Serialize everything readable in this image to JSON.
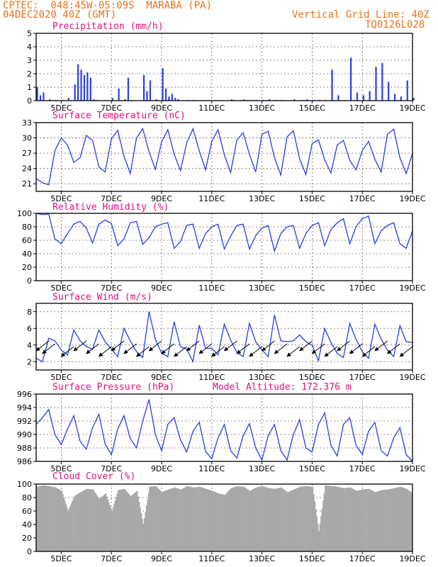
{
  "header": {
    "line1": "CPTEC:  048:45W-05:09S  MARABA (PA)",
    "line2": "04DEC2020 40Z (GMT)",
    "right1": "Vertical Grid Line: 40Z",
    "right2": "TQ0126L028"
  },
  "colors": {
    "header": "#e8731c",
    "titles": "#e0117f",
    "series": "#2b3ee8",
    "cloud": "#a8a8a8",
    "arrows": "#000000"
  },
  "chart_data": [
    {
      "type": "bar",
      "title": "Precipitation (mm/h)",
      "ylim": [
        0,
        5
      ],
      "yticks": [
        0,
        1,
        2,
        3,
        4,
        5
      ],
      "xticks": [
        "5DEC",
        "7DEC",
        "9DEC",
        "11DEC",
        "13DEC",
        "15DEC",
        "17DEC",
        "19DEC"
      ],
      "x_hours": [
        0,
        3,
        6,
        12,
        18,
        24,
        30,
        36,
        39,
        42,
        45,
        48,
        51,
        54,
        57,
        72,
        78,
        84,
        87,
        90,
        102,
        105,
        108,
        114,
        120,
        123,
        126,
        129,
        132,
        135,
        144,
        150,
        186,
        189,
        195,
        198,
        201,
        204,
        207,
        210,
        216,
        219,
        222,
        228,
        234,
        246,
        252,
        255,
        258,
        264,
        270,
        276,
        282,
        288,
        294,
        300,
        306,
        312,
        318,
        324,
        330,
        336,
        342,
        348,
        354,
        360
      ],
      "values": [
        1.0,
        0.4,
        0.6,
        0.1,
        0.05,
        0.05,
        0.2,
        1.2,
        2.7,
        2.3,
        1.9,
        2.1,
        1.7,
        0.1,
        0.05,
        0.2,
        0.9,
        0.1,
        1.7,
        0.05,
        1.9,
        0.7,
        1.5,
        0.1,
        2.4,
        0.9,
        0.3,
        0.5,
        0.2,
        0.1,
        0.05,
        0.05,
        0.1,
        0.05,
        0.05,
        0.1,
        0.05,
        0.05,
        0.05,
        0.05,
        0.05,
        0.05,
        0.1,
        0.05,
        0.05,
        0.1,
        0.05,
        0.05,
        0.1,
        0.05,
        0.05,
        0.05,
        2.3,
        0.4,
        0.05,
        3.2,
        0.6,
        0.4,
        0.7,
        2.5,
        2.8,
        1.4,
        0.5,
        0.3,
        1.5,
        0.2
      ]
    },
    {
      "type": "line",
      "title": "Surface Temperature (nC)",
      "ylim": [
        19.5,
        33
      ],
      "yticks": [
        21,
        24,
        27,
        30,
        33
      ],
      "xticks": [
        "5DEC",
        "7DEC",
        "9DEC",
        "11DEC",
        "13DEC",
        "15DEC",
        "17DEC",
        "19DEC"
      ],
      "x_hours": [
        0,
        6,
        12,
        18,
        24,
        30,
        36,
        42,
        48,
        54,
        60,
        66,
        72,
        78,
        84,
        90,
        96,
        102,
        108,
        114,
        120,
        126,
        132,
        138,
        144,
        150,
        156,
        162,
        168,
        174,
        180,
        186,
        192,
        198,
        204,
        210,
        216,
        222,
        228,
        234,
        240,
        246,
        252,
        258,
        264,
        270,
        276,
        282,
        288,
        294,
        300,
        306,
        312,
        318,
        324,
        330,
        336,
        342,
        348,
        354,
        360
      ],
      "values": [
        22.0,
        21.2,
        20.8,
        27.5,
        30.0,
        28.6,
        25.2,
        26.1,
        30.5,
        29.5,
        24.3,
        23.3,
        29.8,
        31.5,
        26.4,
        23.0,
        30.0,
        31.8,
        27.3,
        23.8,
        29.2,
        31.6,
        26.8,
        23.6,
        29.0,
        31.8,
        27.5,
        23.7,
        29.3,
        31.6,
        26.7,
        23.2,
        29.6,
        31.0,
        26.8,
        23.3,
        30.7,
        31.3,
        26.1,
        22.7,
        30.2,
        31.4,
        25.9,
        22.8,
        28.9,
        29.6,
        25.7,
        23.1,
        28.6,
        29.5,
        25.6,
        23.7,
        27.5,
        29.3,
        25.8,
        23.3,
        30.7,
        31.7,
        26.1,
        23.0,
        27.0
      ],
      "xlabel": "",
      "ylabel": ""
    },
    {
      "type": "line",
      "title": "Relative Humidity (%)",
      "ylim": [
        0,
        100
      ],
      "yticks": [
        0,
        20,
        40,
        60,
        80,
        100
      ],
      "xticks": [
        "5DEC",
        "7DEC",
        "9DEC",
        "11DEC",
        "13DEC",
        "15DEC",
        "17DEC",
        "19DEC"
      ],
      "x_hours": [
        0,
        6,
        12,
        18,
        24,
        30,
        36,
        42,
        48,
        54,
        60,
        66,
        72,
        78,
        84,
        90,
        96,
        102,
        108,
        114,
        120,
        126,
        132,
        138,
        144,
        150,
        156,
        162,
        168,
        174,
        180,
        186,
        192,
        198,
        204,
        210,
        216,
        222,
        228,
        234,
        240,
        246,
        252,
        258,
        264,
        270,
        276,
        282,
        288,
        294,
        300,
        306,
        312,
        318,
        324,
        330,
        336,
        342,
        348,
        354,
        360
      ],
      "values": [
        100,
        98,
        99,
        62,
        55,
        70,
        84,
        88,
        78,
        56,
        84,
        90,
        85,
        52,
        62,
        86,
        88,
        54,
        64,
        80,
        84,
        86,
        48,
        58,
        82,
        84,
        48,
        70,
        80,
        84,
        47,
        66,
        82,
        84,
        47,
        67,
        78,
        82,
        44,
        70,
        80,
        82,
        48,
        70,
        82,
        86,
        52,
        76,
        86,
        92,
        55,
        80,
        92,
        96,
        55,
        74,
        82,
        86,
        55,
        48,
        74
      ]
    },
    {
      "type": "line",
      "title": "Surface Wind (m/s)",
      "ylim": [
        1,
        9
      ],
      "yticks": [
        2,
        4,
        6,
        8
      ],
      "xticks": [
        "5DEC",
        "7DEC",
        "9DEC",
        "11DEC",
        "13DEC",
        "15DEC",
        "17DEC",
        "19DEC"
      ],
      "x_hours": [
        0,
        6,
        12,
        18,
        24,
        30,
        36,
        42,
        48,
        54,
        60,
        66,
        72,
        78,
        84,
        90,
        96,
        102,
        108,
        114,
        120,
        126,
        132,
        138,
        144,
        150,
        156,
        162,
        168,
        174,
        180,
        186,
        192,
        198,
        204,
        210,
        216,
        222,
        228,
        234,
        240,
        246,
        252,
        258,
        264,
        270,
        276,
        282,
        288,
        294,
        300,
        306,
        312,
        318,
        324,
        330,
        336,
        342,
        348,
        354,
        360
      ],
      "values": [
        2.4,
        2.0,
        4.8,
        4.5,
        3.4,
        2.8,
        5.8,
        4.5,
        3.8,
        3.5,
        5.8,
        4.4,
        3.5,
        2.6,
        6.0,
        4.5,
        3.2,
        2.5,
        8.0,
        4.7,
        3.0,
        2.6,
        6.8,
        3.8,
        3.5,
        2.0,
        6.4,
        3.6,
        3.6,
        2.8,
        6.5,
        4.6,
        3.1,
        2.6,
        6.6,
        4.4,
        3.4,
        2.6,
        7.6,
        4.5,
        4.4,
        4.5,
        5.2,
        4.4,
        4.0,
        2.1,
        6.0,
        4.3,
        3.0,
        2.5,
        6.6,
        4.7,
        3.2,
        2.4,
        6.5,
        4.7,
        3.4,
        2.6,
        6.3,
        4.4,
        4.3
      ],
      "arrows_at_hours": [
        6,
        12,
        30,
        42,
        54,
        66,
        78,
        90,
        102,
        114,
        126,
        138,
        150,
        162,
        174,
        186,
        198,
        210,
        222,
        234,
        246,
        258,
        270,
        282,
        294,
        306,
        318,
        330,
        342,
        354
      ]
    },
    {
      "type": "line",
      "title": "Surface Pressure (hPa)",
      "annotation": "Model Altitude: 172.376 m",
      "ylim": [
        986,
        996
      ],
      "yticks": [
        986,
        988,
        990,
        992,
        994,
        996
      ],
      "xticks": [
        "5DEC",
        "7DEC",
        "9DEC",
        "11DEC",
        "13DEC",
        "15DEC",
        "17DEC",
        "19DEC"
      ],
      "x_hours": [
        0,
        6,
        12,
        18,
        24,
        30,
        36,
        42,
        48,
        54,
        60,
        66,
        72,
        78,
        84,
        90,
        96,
        102,
        108,
        114,
        120,
        126,
        132,
        138,
        144,
        150,
        156,
        162,
        168,
        174,
        180,
        186,
        192,
        198,
        204,
        210,
        216,
        222,
        228,
        234,
        240,
        246,
        252,
        258,
        264,
        270,
        276,
        282,
        288,
        294,
        300,
        306,
        312,
        318,
        324,
        330,
        336,
        342,
        348,
        354,
        360
      ],
      "values": [
        991.5,
        992.5,
        993.7,
        990.0,
        988.5,
        990.8,
        992.8,
        989.0,
        987.8,
        991.0,
        993.0,
        988.6,
        987.0,
        990.8,
        992.8,
        989.4,
        988.0,
        992.0,
        995.2,
        990.0,
        987.6,
        991.5,
        992.5,
        989.2,
        987.4,
        990.5,
        991.8,
        987.5,
        986.4,
        989.5,
        991.5,
        987.6,
        986.5,
        989.8,
        991.6,
        988.0,
        986.2,
        989.8,
        991.5,
        987.6,
        986.2,
        990.0,
        992.2,
        988.0,
        987.4,
        991.5,
        993.2,
        988.4,
        986.8,
        991.5,
        992.5,
        988.4,
        987.0,
        990.5,
        991.8,
        987.6,
        986.8,
        989.5,
        991.0,
        987.0,
        986.0
      ]
    },
    {
      "type": "bar",
      "title": "Cloud Cover (%)",
      "ylim": [
        0,
        100
      ],
      "yticks": [
        0,
        20,
        40,
        60,
        80,
        100
      ],
      "xticks": [
        "5DEC",
        "7DEC",
        "9DEC",
        "11DEC",
        "13DEC",
        "15DEC",
        "17DEC",
        "19DEC"
      ],
      "x_hours": [
        0,
        6,
        12,
        18,
        24,
        30,
        36,
        42,
        48,
        54,
        60,
        66,
        72,
        78,
        84,
        90,
        96,
        102,
        108,
        114,
        120,
        126,
        132,
        138,
        144,
        150,
        156,
        162,
        168,
        174,
        180,
        186,
        192,
        198,
        204,
        210,
        216,
        222,
        228,
        234,
        240,
        246,
        252,
        258,
        264,
        270,
        276,
        282,
        288,
        294,
        300,
        306,
        312,
        318,
        324,
        330,
        336,
        342,
        348,
        354,
        360
      ],
      "values": [
        96,
        98,
        97,
        95,
        90,
        60,
        82,
        88,
        93,
        92,
        78,
        86,
        60,
        91,
        93,
        82,
        90,
        40,
        96,
        97,
        88,
        92,
        95,
        92,
        97,
        95,
        96,
        93,
        90,
        86,
        84,
        94,
        97,
        96,
        90,
        95,
        97,
        94,
        93,
        95,
        88,
        92,
        96,
        97,
        96,
        30,
        98,
        97,
        96,
        94,
        95,
        90,
        92,
        93,
        88,
        91,
        92,
        94,
        96,
        93,
        86
      ]
    }
  ]
}
